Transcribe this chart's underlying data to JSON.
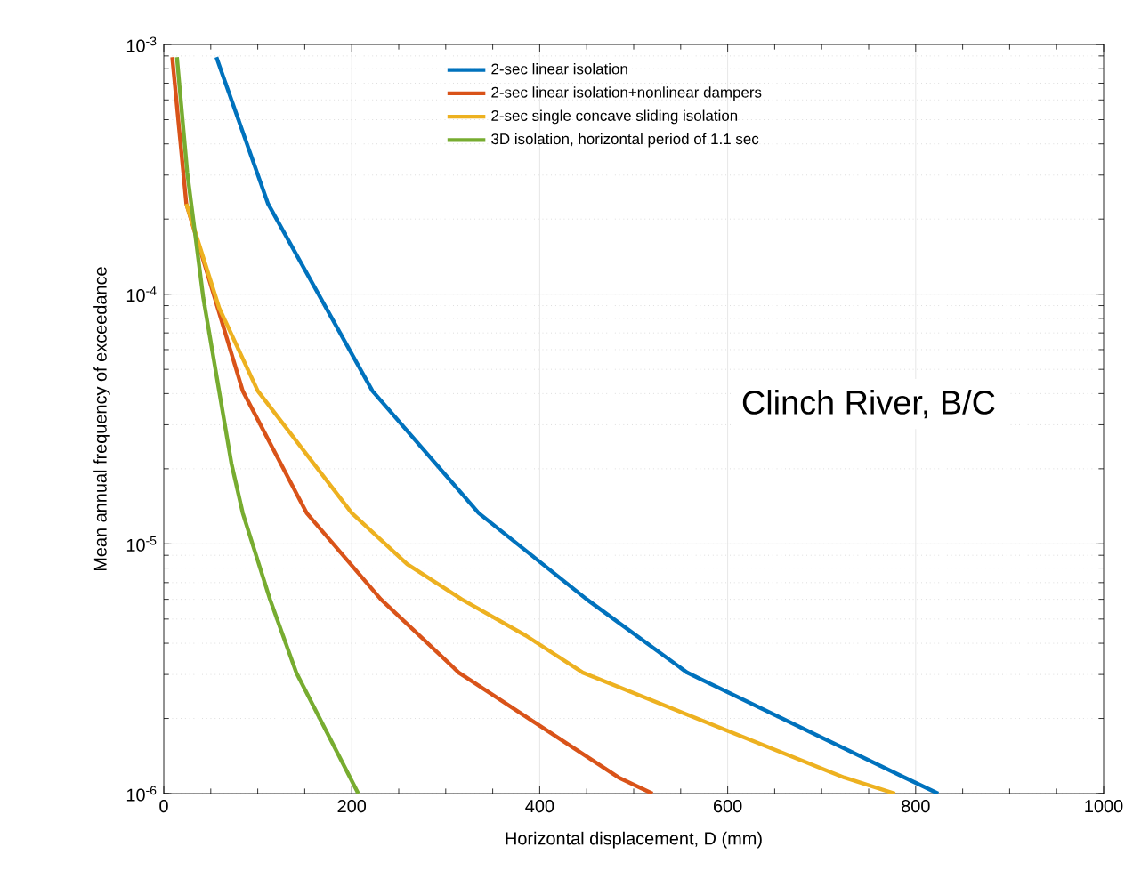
{
  "chart_data": {
    "type": "line",
    "xlabel": "Horizontal displacement, D (mm)",
    "ylabel": "Mean annual frequency of exceedance",
    "log": "y",
    "grid": true,
    "legend": "top",
    "line_style": "solid",
    "marker": "none",
    "xlim": [
      0,
      1000
    ],
    "xticks": [
      0,
      200,
      400,
      600,
      800,
      1000
    ],
    "ylim": [
      1e-06,
      0.001
    ],
    "yticks": [
      {
        "value": 1e-06,
        "label": "10$^{-6}$"
      },
      {
        "value": 1e-05,
        "label": "10$^{-5}$"
      },
      {
        "value": 0.0001,
        "label": "10$^{-4}$"
      },
      {
        "value": 0.001,
        "label": "10$^{-3}$"
      }
    ],
    "annotations": [
      "Clinch River, B/C"
    ],
    "series": [
      {
        "name": "2-sec linear isolation",
        "color": "#0072bd",
        "x": [
          56,
          111,
          222,
          335,
          450,
          557,
          780,
          824
        ],
        "values": [
          0.00089,
          0.00023,
          4.1e-05,
          1.33e-05,
          6e-06,
          3.05e-06,
          1.2e-06,
          1e-06
        ]
      },
      {
        "name": "2-sec linear isolation+nonlinear dampers",
        "color": "#d95319",
        "x": [
          9,
          24,
          84,
          152,
          231,
          314,
          484,
          520
        ],
        "values": [
          0.00089,
          0.00023,
          4.1e-05,
          1.33e-05,
          6e-06,
          3.05e-06,
          1.16e-06,
          1e-06
        ]
      },
      {
        "name": "2-sec single concave sliding isolation",
        "color": "#edb120",
        "x": [
          24,
          59,
          100,
          200,
          259,
          317,
          385,
          446,
          724,
          778
        ],
        "values": [
          0.00023,
          8.8e-05,
          4.1e-05,
          1.33e-05,
          8.3e-06,
          6e-06,
          4.3e-06,
          3.05e-06,
          1.16e-06,
          1e-06
        ]
      },
      {
        "name": "3D isolation, horizontal period of 1.1 sec",
        "color": "#77ac30",
        "x": [
          14,
          25,
          42,
          72,
          84,
          113,
          141,
          207
        ],
        "values": [
          0.00089,
          0.000307,
          9.7e-05,
          2.1e-05,
          1.33e-05,
          6e-06,
          3.05e-06,
          1e-06
        ]
      }
    ]
  }
}
